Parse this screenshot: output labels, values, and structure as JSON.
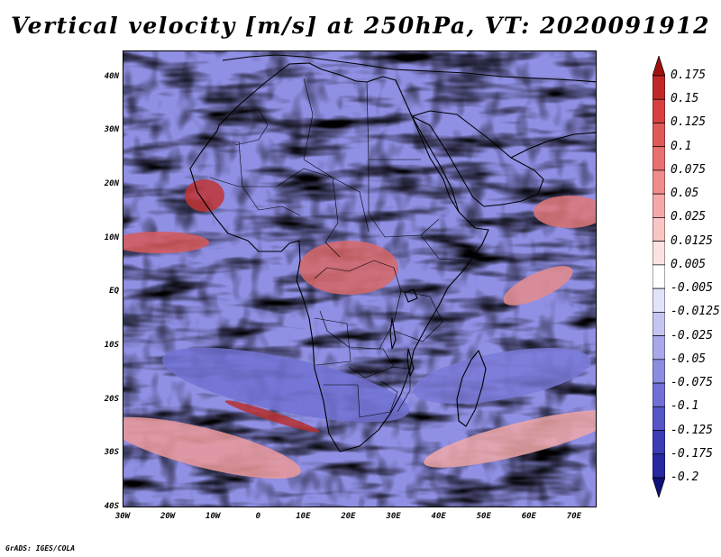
{
  "title": "Vertical velocity [m/s] at 250hPa, VT: 2020091912",
  "map": {
    "lat_labels": [
      "40N",
      "30N",
      "20N",
      "10N",
      "EQ",
      "10S",
      "20S",
      "30S",
      "40S"
    ],
    "lat_values": [
      40,
      30,
      20,
      10,
      0,
      -10,
      -20,
      -30,
      -40
    ],
    "lon_labels": [
      "30W",
      "20W",
      "10W",
      "0",
      "10E",
      "20E",
      "30E",
      "40E",
      "50E",
      "60E",
      "70E"
    ],
    "lon_values": [
      -30,
      -20,
      -10,
      0,
      10,
      20,
      30,
      40,
      50,
      60,
      70
    ],
    "lon_range": [
      -30,
      75
    ],
    "lat_range": [
      -40,
      45
    ]
  },
  "colorbar": {
    "levels": [
      "0.175",
      "0.15",
      "0.125",
      "0.1",
      "0.075",
      "0.05",
      "0.025",
      "0.0125",
      "0.005",
      "-0.005",
      "-0.0125",
      "-0.025",
      "-0.05",
      "-0.075",
      "-0.1",
      "-0.125",
      "-0.175",
      "-0.2"
    ],
    "colors": [
      "#a01010",
      "#c02828",
      "#d84040",
      "#e05858",
      "#e87070",
      "#f08c8c",
      "#f5a8a8",
      "#fac5c5",
      "#fde2e2",
      "#ffffff",
      "#e2e2fa",
      "#c5c5f2",
      "#a8a8ea",
      "#8c8ce0",
      "#7070d6",
      "#5656c8",
      "#3c3cb4",
      "#2828a0",
      "#10107a"
    ]
  },
  "credit": "GrADS: IGES/COLA"
}
